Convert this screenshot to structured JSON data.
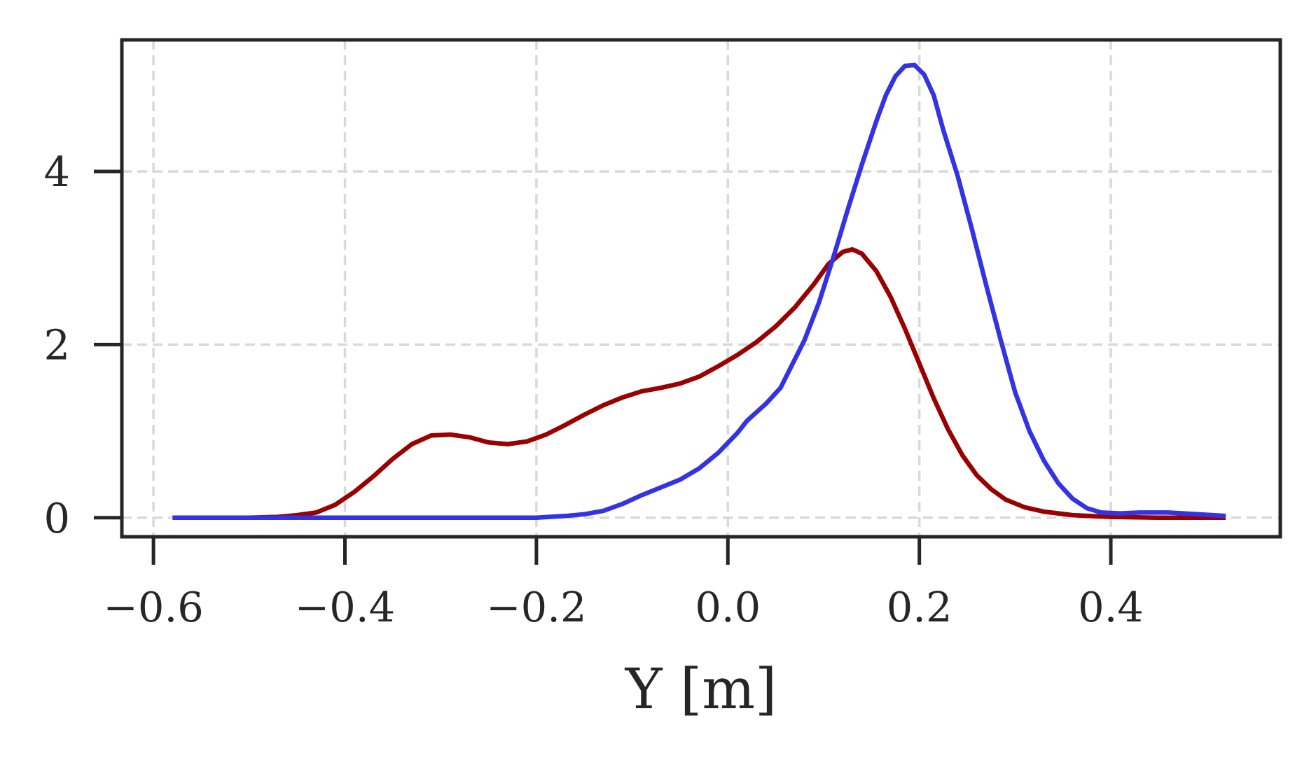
{
  "chart_data": {
    "type": "line",
    "title": "",
    "xlabel": "Y [m]",
    "ylabel": "",
    "xlim": [
      -0.633,
      0.577
    ],
    "ylim": [
      -0.22,
      5.52
    ],
    "xticks": [
      -0.6,
      -0.4,
      -0.2,
      0.0,
      0.2,
      0.4
    ],
    "xtick_labels": [
      "−0.6",
      "−0.4",
      "−0.2",
      "0.0",
      "0.2",
      "0.4"
    ],
    "yticks": [
      0,
      2,
      4
    ],
    "ytick_labels": [
      "0",
      "2",
      "4"
    ],
    "grid": true,
    "legend": "none",
    "series": [
      {
        "color": "#990000",
        "points": [
          [
            -0.58,
            0.0
          ],
          [
            -0.55,
            0.0
          ],
          [
            -0.5,
            0.0
          ],
          [
            -0.47,
            0.01
          ],
          [
            -0.45,
            0.03
          ],
          [
            -0.43,
            0.06
          ],
          [
            -0.41,
            0.15
          ],
          [
            -0.39,
            0.3
          ],
          [
            -0.37,
            0.48
          ],
          [
            -0.35,
            0.68
          ],
          [
            -0.33,
            0.85
          ],
          [
            -0.31,
            0.95
          ],
          [
            -0.29,
            0.96
          ],
          [
            -0.27,
            0.93
          ],
          [
            -0.25,
            0.87
          ],
          [
            -0.23,
            0.85
          ],
          [
            -0.21,
            0.88
          ],
          [
            -0.19,
            0.96
          ],
          [
            -0.17,
            1.07
          ],
          [
            -0.15,
            1.19
          ],
          [
            -0.13,
            1.3
          ],
          [
            -0.11,
            1.39
          ],
          [
            -0.09,
            1.46
          ],
          [
            -0.07,
            1.5
          ],
          [
            -0.05,
            1.55
          ],
          [
            -0.03,
            1.63
          ],
          [
            -0.01,
            1.75
          ],
          [
            0.01,
            1.88
          ],
          [
            0.03,
            2.03
          ],
          [
            0.05,
            2.21
          ],
          [
            0.07,
            2.43
          ],
          [
            0.09,
            2.7
          ],
          [
            0.105,
            2.93
          ],
          [
            0.12,
            3.07
          ],
          [
            0.13,
            3.1
          ],
          [
            0.14,
            3.05
          ],
          [
            0.155,
            2.85
          ],
          [
            0.17,
            2.55
          ],
          [
            0.185,
            2.18
          ],
          [
            0.2,
            1.78
          ],
          [
            0.215,
            1.38
          ],
          [
            0.23,
            1.02
          ],
          [
            0.245,
            0.72
          ],
          [
            0.26,
            0.49
          ],
          [
            0.275,
            0.33
          ],
          [
            0.29,
            0.21
          ],
          [
            0.31,
            0.12
          ],
          [
            0.33,
            0.07
          ],
          [
            0.36,
            0.03
          ],
          [
            0.4,
            0.01
          ],
          [
            0.45,
            0.0
          ],
          [
            0.52,
            0.0
          ]
        ]
      },
      {
        "color": "#3333e6",
        "points": [
          [
            -0.58,
            0.0
          ],
          [
            -0.5,
            0.0
          ],
          [
            -0.4,
            0.0
          ],
          [
            -0.3,
            0.0
          ],
          [
            -0.25,
            0.0
          ],
          [
            -0.2,
            0.0
          ],
          [
            -0.17,
            0.02
          ],
          [
            -0.15,
            0.04
          ],
          [
            -0.13,
            0.08
          ],
          [
            -0.11,
            0.16
          ],
          [
            -0.09,
            0.26
          ],
          [
            -0.07,
            0.35
          ],
          [
            -0.05,
            0.44
          ],
          [
            -0.03,
            0.57
          ],
          [
            -0.01,
            0.75
          ],
          [
            0.01,
            0.98
          ],
          [
            0.02,
            1.12
          ],
          [
            0.04,
            1.32
          ],
          [
            0.055,
            1.5
          ],
          [
            0.065,
            1.72
          ],
          [
            0.08,
            2.05
          ],
          [
            0.095,
            2.48
          ],
          [
            0.11,
            3.0
          ],
          [
            0.125,
            3.55
          ],
          [
            0.14,
            4.08
          ],
          [
            0.155,
            4.58
          ],
          [
            0.165,
            4.88
          ],
          [
            0.175,
            5.1
          ],
          [
            0.185,
            5.22
          ],
          [
            0.195,
            5.23
          ],
          [
            0.205,
            5.12
          ],
          [
            0.215,
            4.88
          ],
          [
            0.225,
            4.48
          ],
          [
            0.24,
            3.95
          ],
          [
            0.255,
            3.33
          ],
          [
            0.27,
            2.68
          ],
          [
            0.285,
            2.05
          ],
          [
            0.3,
            1.45
          ],
          [
            0.315,
            1.0
          ],
          [
            0.33,
            0.66
          ],
          [
            0.345,
            0.4
          ],
          [
            0.36,
            0.22
          ],
          [
            0.375,
            0.11
          ],
          [
            0.39,
            0.06
          ],
          [
            0.41,
            0.05
          ],
          [
            0.43,
            0.06
          ],
          [
            0.46,
            0.06
          ],
          [
            0.49,
            0.04
          ],
          [
            0.52,
            0.02
          ]
        ]
      }
    ]
  }
}
